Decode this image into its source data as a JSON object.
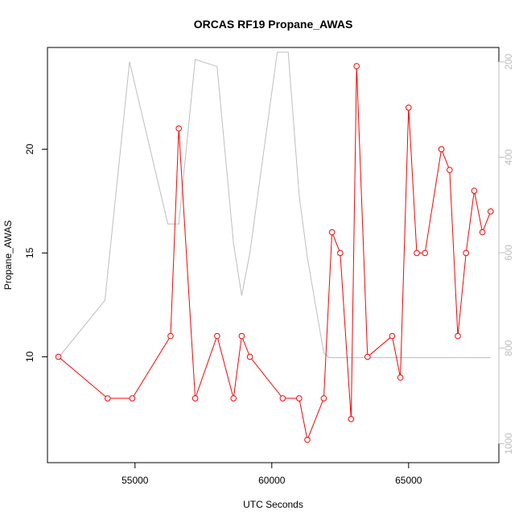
{
  "chart_data": {
    "type": "line",
    "title": "ORCAS RF19 Propane_AWAS",
    "xlabel": "UTC Seconds",
    "ylabel": "Propane_AWAS",
    "xlim": [
      51800,
      68300
    ],
    "ylim": [
      4.9,
      24.9
    ],
    "x_ticks": [
      55000,
      60000,
      65000
    ],
    "y_ticks": [
      10,
      15,
      20
    ],
    "y2_ticks": [
      200,
      400,
      600,
      800,
      1000
    ],
    "y2_reversed": true,
    "y2lim": [
      1040,
      170
    ],
    "grid": false,
    "legend": "none",
    "series": [
      {
        "color": "#ff0000",
        "marker": "open-circle",
        "x": [
          52200,
          54000,
          54900,
          56300,
          56600,
          57200,
          58000,
          58600,
          58900,
          59200,
          60400,
          61000,
          61300,
          61900,
          62200,
          62500,
          62900,
          63100,
          63500,
          64400,
          64700,
          65000,
          65300,
          65600,
          66200,
          66500,
          66800,
          67100,
          67400,
          67700,
          68000
        ],
        "y": [
          10,
          8,
          8,
          11,
          21,
          8,
          11,
          8,
          11,
          10,
          8,
          8,
          6,
          8,
          16,
          15,
          7,
          24,
          10,
          11,
          9,
          22,
          15,
          15,
          20,
          19,
          11,
          15,
          18,
          16,
          17
        ]
      },
      {
        "color": "#bebebe",
        "marker": "none",
        "axis": "right",
        "x": [
          52200,
          53900,
          54800,
          56200,
          56600,
          57200,
          58000,
          58600,
          58900,
          59200,
          60200,
          60600,
          61000,
          61300,
          61900,
          62100,
          68000
        ],
        "y": [
          820,
          700,
          200,
          540,
          540,
          195,
          210,
          580,
          690,
          600,
          180,
          180,
          480,
          610,
          810,
          820,
          820
        ]
      }
    ]
  }
}
